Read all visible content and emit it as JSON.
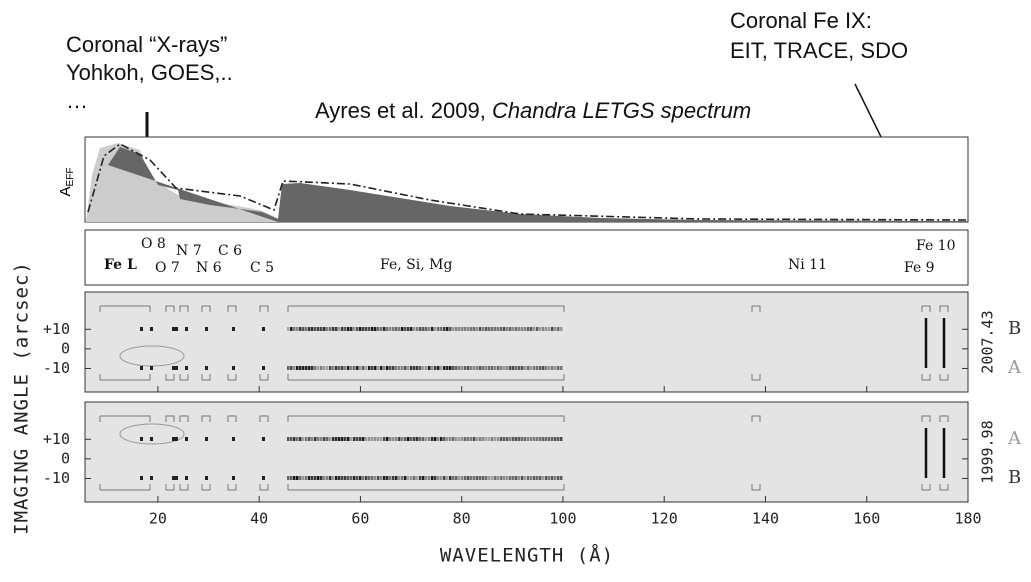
{
  "annotations": {
    "xrays": [
      "Coronal “X-rays”",
      "Yohkoh, GOES,..",
      "…"
    ],
    "fe9": [
      "Coronal Fe IX:",
      "EIT, TRACE, SDO"
    ],
    "reference": {
      "text": "Ayres et al. 2009, ",
      "italic": "Chandra LETGS spectrum"
    }
  },
  "effective_area_panel": {
    "ylabel": "A",
    "ylabel_sub": "EFF"
  },
  "line_labels": [
    "Fe L",
    "O 8",
    "O 7",
    "N 7",
    "N 6",
    "C 6",
    "C 5",
    "Fe, Si, Mg",
    "Ni 11",
    "Fe 10",
    "Fe 9"
  ],
  "image_panels": [
    {
      "epoch": "2007.43",
      "orders": [
        "B",
        "A"
      ]
    },
    {
      "epoch": "1999.98",
      "orders": [
        "A",
        "B"
      ]
    }
  ],
  "y_axis": {
    "label": "IMAGING ANGLE (arcsec)",
    "ylim": [
      -22,
      29
    ],
    "yticks": [
      {
        "value": 10,
        "label": "+10"
      },
      0,
      -10
    ]
  },
  "x_axis": {
    "label": "WAVELENGTH (Å)",
    "xlim": [
      5.6,
      180
    ],
    "xticks": [
      20,
      40,
      60,
      80,
      100,
      120,
      140,
      160,
      180
    ]
  }
}
